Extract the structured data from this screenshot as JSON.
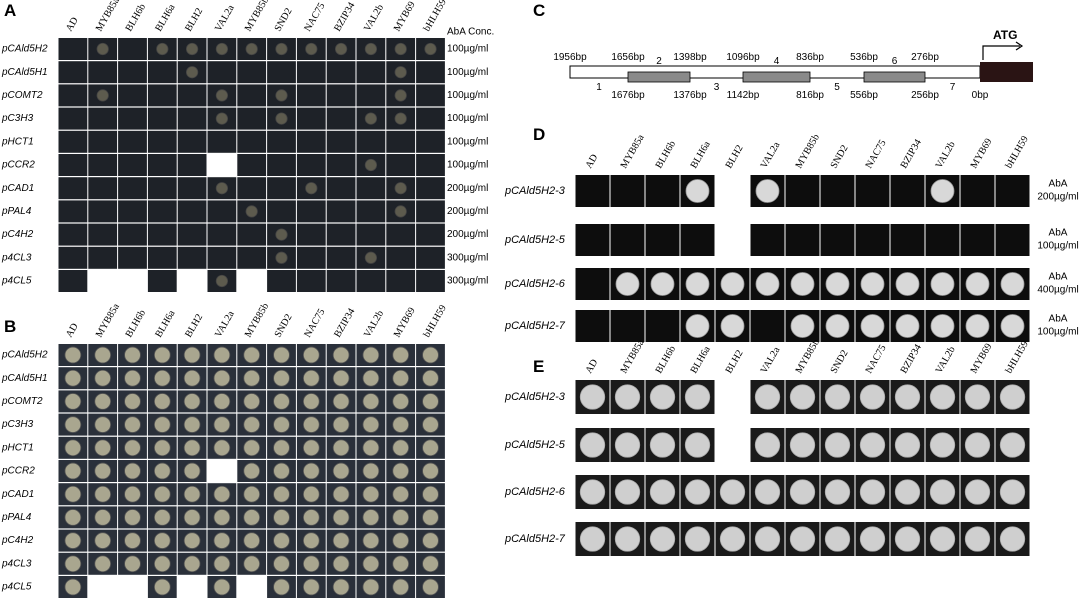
{
  "panel_a": {
    "label": "A",
    "columns": [
      "AD",
      "MYB85a",
      "BLH6b",
      "BLH6a",
      "BLH2",
      "VAL2a",
      "MYB85b",
      "SND2",
      "NAC75",
      "BZIP34",
      "VAL2b",
      "MYB69",
      "bHLH59"
    ],
    "conc_header": "AbA Conc.",
    "rows": [
      {
        "name": "pCAld5H2",
        "conc": "100µg/ml"
      },
      {
        "name": "pCAld5H1",
        "conc": "100µg/ml"
      },
      {
        "name": "pCOMT2",
        "conc": "100µg/ml"
      },
      {
        "name": "pC3H3",
        "conc": "100µg/ml"
      },
      {
        "name": "pHCT1",
        "conc": "100µg/ml"
      },
      {
        "name": "pCCR2",
        "conc": "100µg/ml"
      },
      {
        "name": "pCAD1",
        "conc": "200µg/ml"
      },
      {
        "name": "pPAL4",
        "conc": "200µg/ml"
      },
      {
        "name": "pC4H2",
        "conc": "200µg/ml"
      },
      {
        "name": "p4CL3",
        "conc": "300µg/ml"
      },
      {
        "name": "p4CL5",
        "conc": "300µg/ml"
      }
    ]
  },
  "panel_b": {
    "label": "B",
    "columns": [
      "AD",
      "MYB85a",
      "BLH6b",
      "BLH6a",
      "BLH2",
      "VAL2a",
      "MYB85b",
      "SND2",
      "NAC75",
      "BZIP34",
      "VAL2b",
      "MYB69",
      "bHLH59"
    ],
    "rows": [
      "pCAld5H2",
      "pCAld5H1",
      "pCOMT2",
      "pC3H3",
      "pHCT1",
      "pCCR2",
      "pCAD1",
      "pPAL4",
      "pC4H2",
      "p4CL3",
      "p4CL5"
    ]
  },
  "panel_c": {
    "label": "C",
    "top_labels": [
      "1956bp",
      "1656bp",
      "1398bp",
      "1096bp",
      "836bp",
      "536bp",
      "276bp"
    ],
    "bottom_labels": [
      "1676bp",
      "1376bp",
      "1142bp",
      "816bp",
      "556bp",
      "256bp",
      "0bp"
    ],
    "segments": [
      "1",
      "2",
      "3",
      "4",
      "5",
      "6",
      "7"
    ],
    "start": "ATG"
  },
  "panel_d": {
    "label": "D",
    "columns": [
      "AD",
      "MYB85a",
      "BLH6b",
      "BLH6a",
      "BLH2",
      "VAL2a",
      "MYB85b",
      "SND2",
      "NAC75",
      "BZIP34",
      "VAL2b",
      "MYB69",
      "bHLH59"
    ],
    "rows": [
      {
        "name": "pCAld5H2-3",
        "aba": "AbA",
        "conc": "200µg/ml"
      },
      {
        "name": "pCAld5H2-5",
        "aba": "AbA",
        "conc": "100µg/ml"
      },
      {
        "name": "pCAld5H2-6",
        "aba": "AbA",
        "conc": "400µg/ml"
      },
      {
        "name": "pCAld5H2-7",
        "aba": "AbA",
        "conc": "100µg/ml"
      }
    ]
  },
  "panel_e": {
    "label": "E",
    "columns": [
      "AD",
      "MYB85a",
      "BLH6b",
      "BLH6a",
      "BLH2",
      "VAL2a",
      "MYB85b",
      "SND2",
      "NAC75",
      "BZIP34",
      "VAL2b",
      "MYB69",
      "bHLH59"
    ],
    "rows": [
      "pCAld5H2-3",
      "pCAld5H2-5",
      "pCAld5H2-6",
      "pCAld5H2-7"
    ]
  }
}
